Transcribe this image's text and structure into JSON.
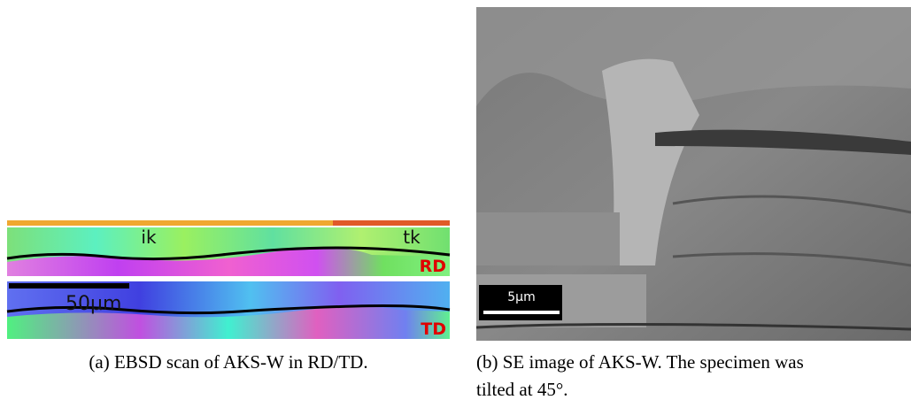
{
  "figure": {
    "panels": [
      {
        "labels": {
          "left_zone": "ik",
          "right_zone": "tk",
          "top_map": "RD",
          "bottom_map": "TD",
          "scale_bar": "50µm"
        },
        "caption_lines": [
          "(a) EBSD scan of AKS-W in RD/TD."
        ]
      },
      {
        "labels": {
          "scale_bar": "5µm"
        },
        "caption_lines": [
          "(b) SE image of AKS-W. The specimen was",
          "tilted at 45°."
        ]
      }
    ]
  }
}
